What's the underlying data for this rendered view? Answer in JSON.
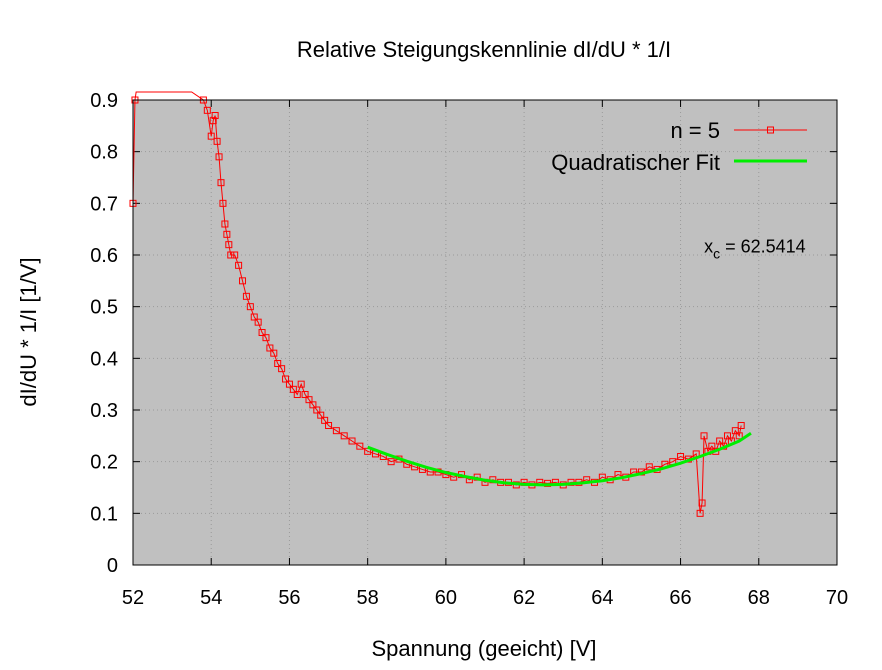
{
  "chart_data": {
    "type": "scatter",
    "title": "Relative Steigungskennlinie dI/dU * 1/I",
    "xlabel": "Spannung (geeicht) [V]",
    "ylabel": "dI/dU * 1/I [1/V]",
    "xlim": [
      52,
      70
    ],
    "ylim": [
      0,
      0.9
    ],
    "x_ticks": [
      "52",
      "54",
      "56",
      "58",
      "60",
      "62",
      "64",
      "66",
      "68",
      "70"
    ],
    "y_ticks": [
      "0",
      "0.1",
      "0.2",
      "0.3",
      "0.4",
      "0.5",
      "0.6",
      "0.7",
      "0.8",
      "0.9"
    ],
    "grid": true,
    "legend_position": "top-right",
    "colors": {
      "data": "#ff0000",
      "fit": "#00ee00",
      "plot_bg": "#c0c0c0",
      "grid": "#9a9a9a"
    },
    "series": [
      {
        "name": "n = 5",
        "style": "linespoints",
        "marker": "open-square",
        "x": [
          52.0,
          52.05,
          52.08,
          53.5,
          53.8,
          53.9,
          54.0,
          54.05,
          54.1,
          54.15,
          54.2,
          54.25,
          54.3,
          54.35,
          54.4,
          54.45,
          54.5,
          54.6,
          54.7,
          54.8,
          54.9,
          55.0,
          55.1,
          55.2,
          55.3,
          55.4,
          55.5,
          55.6,
          55.7,
          55.8,
          55.9,
          56.0,
          56.1,
          56.2,
          56.3,
          56.4,
          56.5,
          56.6,
          56.7,
          56.8,
          56.9,
          57.0,
          57.2,
          57.4,
          57.6,
          57.8,
          58.0,
          58.2,
          58.4,
          58.6,
          58.8,
          59.0,
          59.2,
          59.4,
          59.6,
          59.8,
          60.0,
          60.2,
          60.4,
          60.6,
          60.8,
          61.0,
          61.2,
          61.4,
          61.6,
          61.8,
          62.0,
          62.2,
          62.4,
          62.6,
          62.8,
          63.0,
          63.2,
          63.4,
          63.6,
          63.8,
          64.0,
          64.2,
          64.4,
          64.6,
          64.8,
          65.0,
          65.2,
          65.4,
          65.6,
          65.8,
          66.0,
          66.2,
          66.4,
          66.5,
          66.55,
          66.6,
          66.7,
          66.8,
          66.9,
          67.0,
          67.1,
          67.2,
          67.3,
          67.4,
          67.5,
          67.55
        ],
        "y": [
          0.7,
          0.9,
          0.95,
          0.95,
          0.9,
          0.88,
          0.83,
          0.86,
          0.87,
          0.82,
          0.79,
          0.74,
          0.7,
          0.66,
          0.64,
          0.62,
          0.6,
          0.6,
          0.58,
          0.55,
          0.52,
          0.5,
          0.48,
          0.47,
          0.45,
          0.44,
          0.42,
          0.41,
          0.39,
          0.38,
          0.36,
          0.35,
          0.34,
          0.33,
          0.35,
          0.33,
          0.32,
          0.31,
          0.3,
          0.29,
          0.28,
          0.27,
          0.26,
          0.25,
          0.24,
          0.23,
          0.22,
          0.215,
          0.21,
          0.2,
          0.205,
          0.195,
          0.19,
          0.185,
          0.18,
          0.18,
          0.175,
          0.17,
          0.175,
          0.165,
          0.17,
          0.16,
          0.165,
          0.16,
          0.16,
          0.155,
          0.16,
          0.155,
          0.16,
          0.158,
          0.16,
          0.155,
          0.16,
          0.16,
          0.165,
          0.16,
          0.17,
          0.165,
          0.175,
          0.17,
          0.18,
          0.18,
          0.19,
          0.185,
          0.195,
          0.2,
          0.21,
          0.205,
          0.215,
          0.1,
          0.12,
          0.25,
          0.22,
          0.23,
          0.22,
          0.24,
          0.23,
          0.25,
          0.24,
          0.26,
          0.25,
          0.27
        ]
      },
      {
        "name": "Quadratischer Fit",
        "style": "line",
        "x": [
          58.0,
          58.5,
          59.0,
          59.5,
          60.0,
          60.5,
          61.0,
          61.5,
          62.0,
          62.5,
          63.0,
          63.5,
          64.0,
          64.5,
          65.0,
          65.5,
          66.0,
          66.5,
          67.0,
          67.5,
          67.8
        ],
        "y": [
          0.228,
          0.214,
          0.201,
          0.189,
          0.179,
          0.171,
          0.164,
          0.159,
          0.156,
          0.155,
          0.156,
          0.159,
          0.163,
          0.169,
          0.177,
          0.186,
          0.197,
          0.21,
          0.224,
          0.24,
          0.255
        ]
      }
    ],
    "annotation": {
      "label": "x",
      "subscript": "c",
      "value_text": " = 62.5414",
      "x": 69.2,
      "y": 0.605
    }
  }
}
